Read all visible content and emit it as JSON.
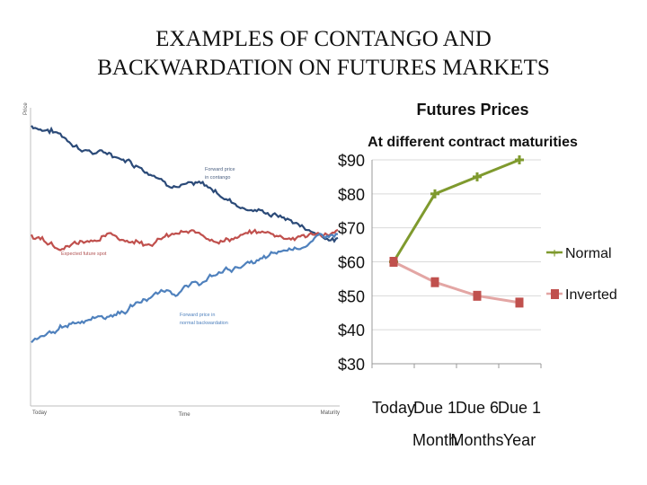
{
  "slide": {
    "title_line1": "EXAMPLES OF CONTANGO AND",
    "title_line2": "BACKWARDATION ON FUTURES MARKETS"
  },
  "chart_data": [
    {
      "type": "line",
      "title": "",
      "ylabel": "Price",
      "xlabel": "Time",
      "x_ticks": [
        "Today",
        "Maturity"
      ],
      "series": [
        {
          "name": "Forward price in contango",
          "color": "#2b4a78",
          "trend": "declining",
          "start": 1.0,
          "end": 0.55
        },
        {
          "name": "Expected future spot",
          "color": "#c0504d",
          "trend": "flat-rising",
          "start": 0.55,
          "end": 0.57
        },
        {
          "name": "Forward price in normal backwardation",
          "color": "#4f81bd",
          "trend": "rising",
          "start": 0.15,
          "end": 0.57
        }
      ]
    },
    {
      "type": "line",
      "title": "Futures Prices",
      "subtitle": "At different contract maturities",
      "categories": [
        "Today",
        "Due 1 Month",
        "Due 6 Months",
        "Due 1 Year"
      ],
      "x_tick_labels": [
        {
          "line1": "Today",
          "line2": ""
        },
        {
          "line1": "Due 1",
          "line2": "Month"
        },
        {
          "line1": "Due 6",
          "line2": "Months"
        },
        {
          "line1": "Due 1",
          "line2": "Year"
        }
      ],
      "y_ticks": [
        "$90",
        "$80",
        "$70",
        "$60",
        "$50",
        "$40",
        "$30"
      ],
      "ylim": [
        30,
        90
      ],
      "series": [
        {
          "name": "Normal",
          "color": "#7f9a2e",
          "marker": "plus",
          "values": [
            60,
            80,
            85,
            90
          ]
        },
        {
          "name": "Inverted",
          "color": "#c0504d",
          "line_color": "#e3a6a4",
          "marker": "square",
          "values": [
            60,
            54,
            50,
            48
          ]
        }
      ]
    }
  ]
}
